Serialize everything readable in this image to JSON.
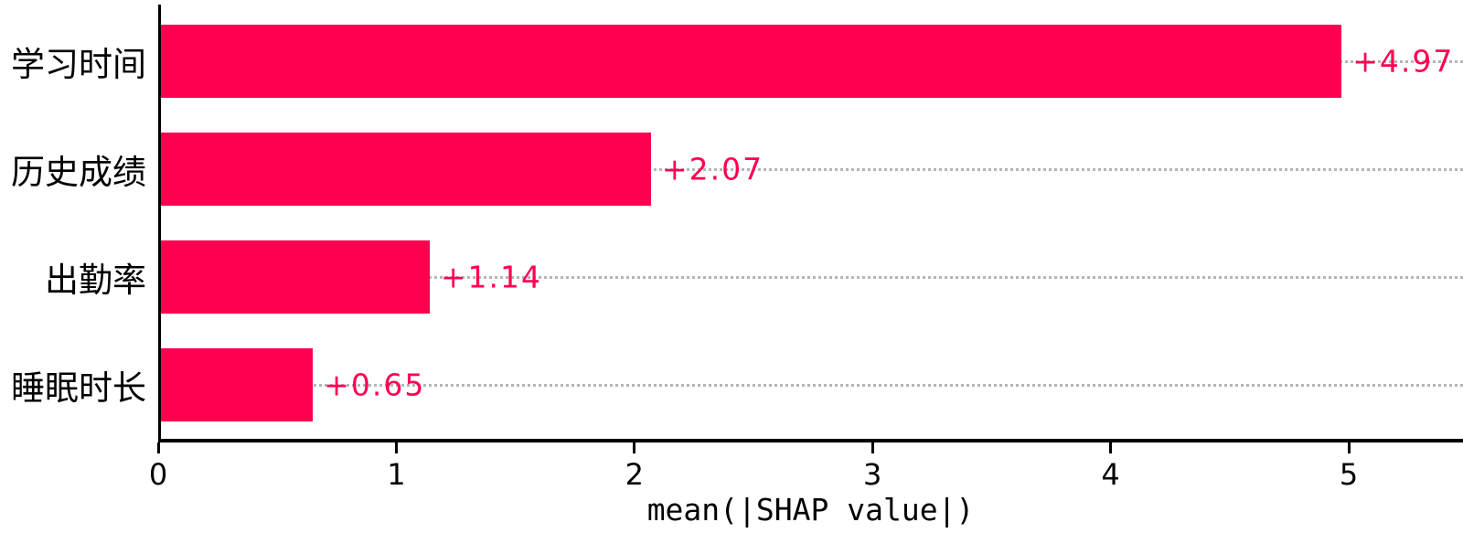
{
  "chart_data": {
    "type": "bar",
    "orientation": "horizontal",
    "title": "",
    "categories": [
      "学习时间",
      "历史成绩",
      "出勤率",
      "睡眠时长"
    ],
    "values": [
      4.97,
      2.07,
      1.14,
      0.65
    ],
    "value_labels": [
      "+4.97",
      "+2.07",
      "+1.14",
      "+0.65"
    ],
    "xlabel": "mean(|SHAP value|)",
    "ylabel": "",
    "xticks": [
      "0",
      "1",
      "2",
      "3",
      "4",
      "5"
    ],
    "xtick_values": [
      0,
      1,
      2,
      3,
      4,
      5
    ],
    "xlim": [
      0,
      5.48
    ],
    "grid": "per-bar horizontal dotted lines, full width, behind bars",
    "legend": false,
    "colors": {
      "bar": "#ff0051",
      "value_label": "#ff0051",
      "gridline": "#b5b5b5",
      "axis": "#000000",
      "text": "#000000",
      "background": "#ffffff"
    }
  }
}
